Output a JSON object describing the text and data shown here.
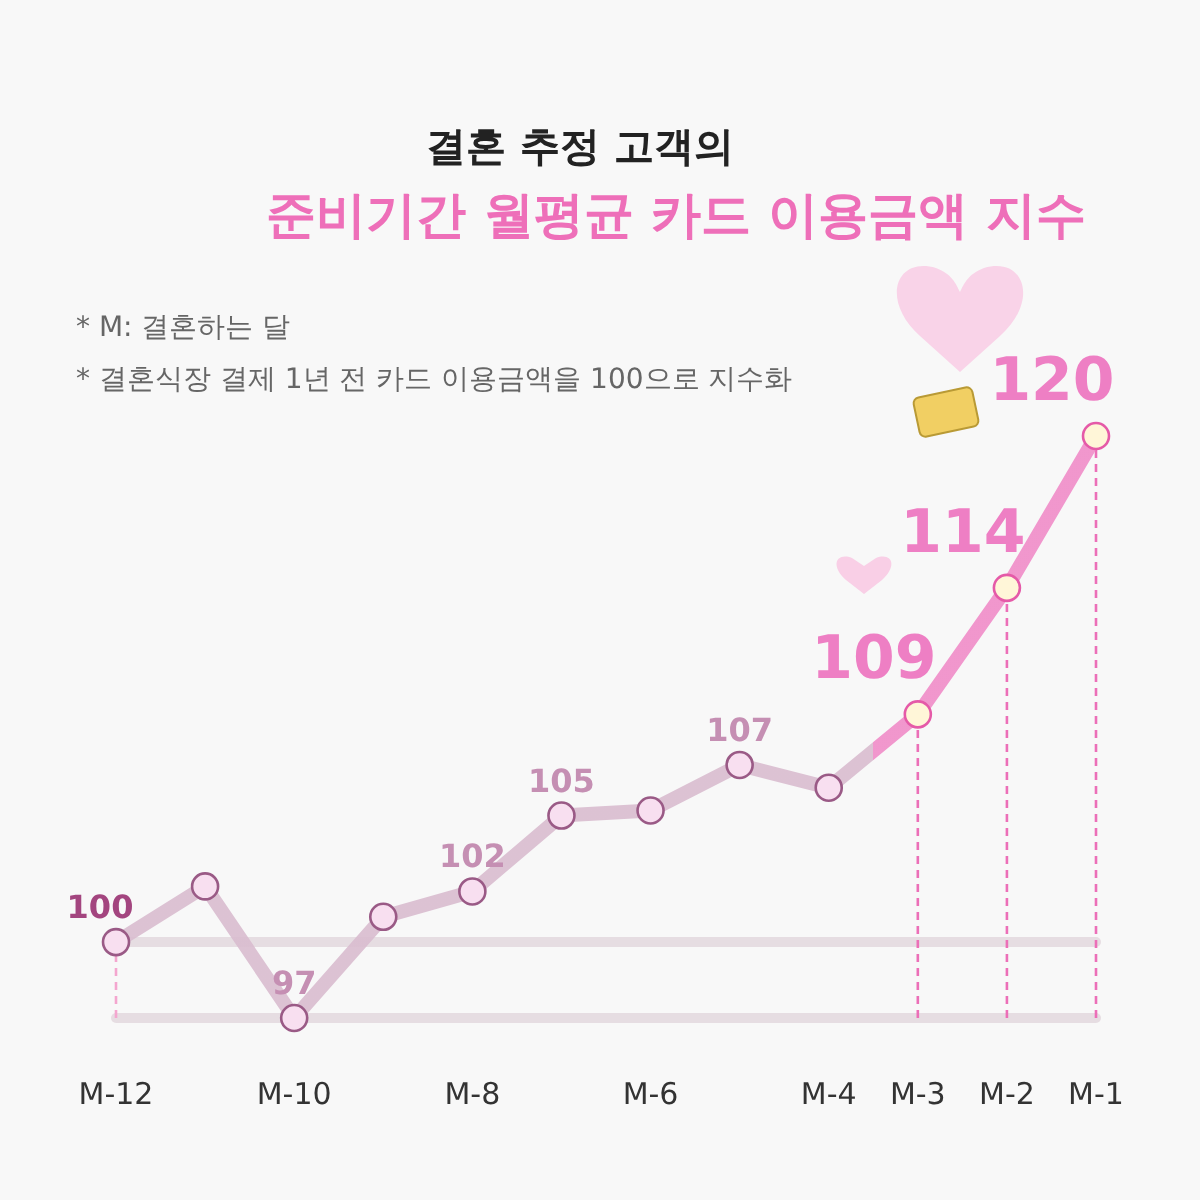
{
  "chart_data": {
    "type": "line",
    "title": "결혼 추정 고객의",
    "subtitle": "준비기간 월평균 카드 이용금액 지수",
    "annotations": [
      "* M: 결혼하는 달",
      "* 결혼식장 결제 1년 전 카드 이용금액을 100으로 지수화"
    ],
    "categories": [
      "M-12",
      null,
      "M-10",
      null,
      "M-8",
      null,
      "M-6",
      null,
      "M-4",
      "M-3",
      "M-2",
      "M-1"
    ],
    "series": [
      {
        "values": [
          100,
          102.2,
          97,
          101,
          102,
          105,
          105.2,
          107,
          106.1,
          109,
          114,
          120
        ],
        "colors": [
          "#d9bccf",
          "#d9bccf",
          "#d9bccf",
          "#d9bccf",
          "#d9bccf",
          "#d9bccf",
          "#d9bccf",
          "#d9bccf",
          "#d9bccf",
          "#f08cc8",
          "#f08cc8",
          "#f08cc8"
        ],
        "value_labels": [
          "100",
          null,
          "97",
          null,
          "102",
          "105",
          null,
          "107",
          null,
          "109",
          "114",
          "120"
        ]
      }
    ],
    "ref_lines": [
      {
        "axis": "y",
        "value": 100,
        "color": "#e6dde2"
      },
      {
        "axis": "x",
        "value": "M-12",
        "color": "#f4a6cf",
        "line_style": "dashed"
      },
      {
        "axis": "x",
        "value": "M-3",
        "color": "#ec6fb8",
        "line_style": "dashed"
      },
      {
        "axis": "x",
        "value": "M-2",
        "color": "#ec6fb8",
        "line_style": "dashed"
      },
      {
        "axis": "x",
        "value": "M-1",
        "color": "#ec6fb8",
        "line_style": "dashed"
      }
    ],
    "marker": "circle"
  }
}
